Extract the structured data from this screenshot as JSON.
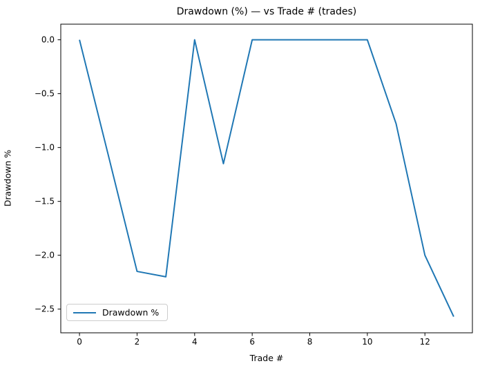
{
  "chart_data": {
    "type": "line",
    "title": "Drawdown (%) — vs Trade # (trades)",
    "xlabel": "Trade #",
    "ylabel": "Drawdown %",
    "x": [
      0,
      1,
      2,
      3,
      4,
      5,
      6,
      7,
      8,
      9,
      10,
      11,
      12,
      13
    ],
    "series": [
      {
        "name": "Drawdown %",
        "color": "#1f77b4",
        "values": [
          0.0,
          -1.07,
          -2.15,
          -2.2,
          0.0,
          -1.15,
          0.0,
          0.0,
          0.0,
          0.0,
          0.0,
          -0.78,
          -2.0,
          -2.57
        ]
      }
    ],
    "xticks": [
      0,
      2,
      4,
      6,
      8,
      10,
      12
    ],
    "xtick_labels": [
      "0",
      "2",
      "4",
      "6",
      "8",
      "10",
      "12"
    ],
    "yticks": [
      0.0,
      -0.5,
      -1.0,
      -1.5,
      -2.0,
      -2.5
    ],
    "ytick_labels": [
      "0.0",
      "−0.5",
      "−1.0",
      "−1.5",
      "−2.0",
      "−2.5"
    ],
    "xlim": [
      -0.65,
      13.65
    ],
    "ylim": [
      -2.72,
      0.145
    ],
    "grid": false,
    "legend": {
      "position": "lower left",
      "labels": [
        "Drawdown %"
      ]
    },
    "colors": {
      "line": "#1f77b4",
      "spine": "#000000",
      "text": "#000000",
      "legend_border": "#cccccc"
    }
  }
}
